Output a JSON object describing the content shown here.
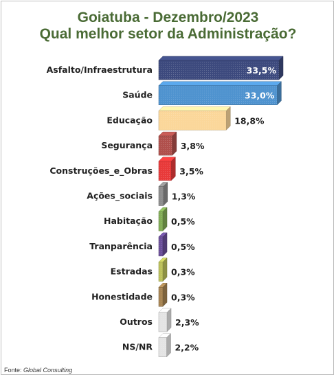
{
  "title": "Goiatuba - Dezembro/2023",
  "subtitle": "Qual melhor setor da Administração?",
  "source_label": "Fonte:",
  "source_name": "Global Consulting",
  "chart_data": {
    "type": "bar",
    "orientation": "horizontal",
    "title": "Goiatuba - Dezembro/2023",
    "subtitle": "Qual melhor setor da Administração?",
    "categories": [
      "Asfalto/Infraestrutura",
      "Saúde",
      "Educação",
      "Segurança",
      "Construções_e_Obras",
      "Ações_sociais",
      "Habitação",
      "Tranparência",
      "Estradas",
      "Honestidade",
      "Outros",
      "NS/NR"
    ],
    "values": [
      33.5,
      33.0,
      18.8,
      3.8,
      3.5,
      1.3,
      0.5,
      0.5,
      0.3,
      0.3,
      2.3,
      2.2
    ],
    "value_labels": [
      "33,5%",
      "33,0%",
      "18,8%",
      "3,8%",
      "3,5%",
      "1,3%",
      "0,5%",
      "0,5%",
      "0,3%",
      "0,3%",
      "2,3%",
      "2,2%"
    ],
    "colors": [
      "#3d4a7e",
      "#4f93cf",
      "#fbd79a",
      "#b0504c",
      "#e83a3a",
      "#8d8d8d",
      "#82ad56",
      "#6b4f9a",
      "#bcc15a",
      "#a88553",
      "#e4e4e4",
      "#e4e4e4"
    ],
    "label_inside": [
      true,
      true,
      false,
      false,
      false,
      false,
      false,
      false,
      false,
      false,
      false,
      false
    ],
    "xlim": [
      0,
      35
    ],
    "grid": false,
    "legend": "none"
  }
}
